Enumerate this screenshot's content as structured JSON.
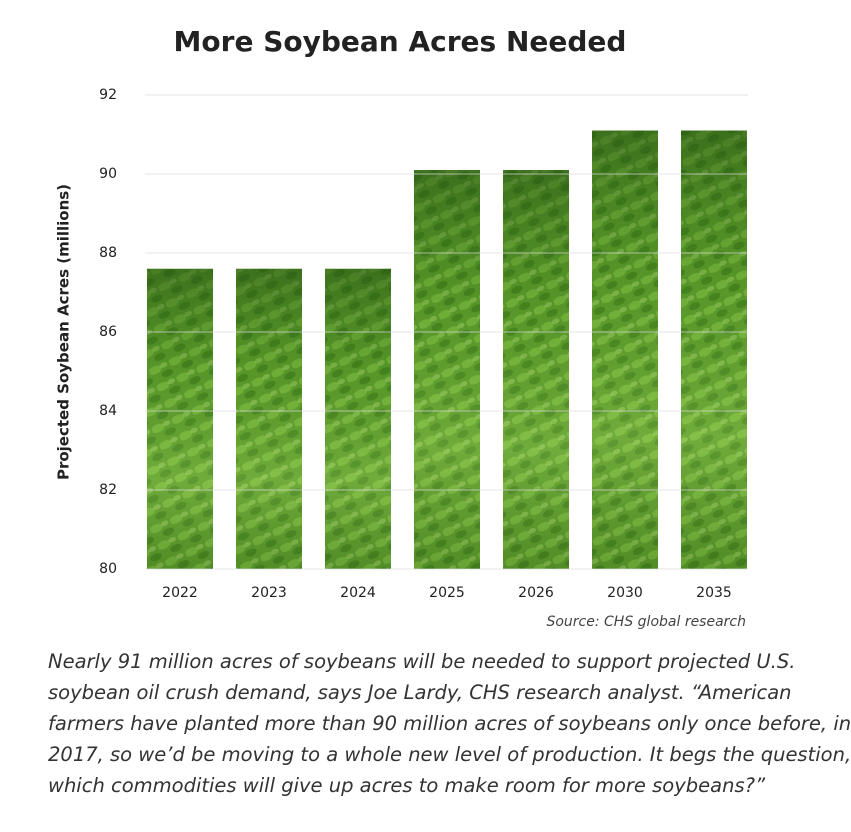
{
  "chart_data": {
    "type": "bar",
    "title": "More Soybean Acres Needed",
    "y_label": "Projected Soybean Acres (millions)",
    "categories": [
      "2022",
      "2023",
      "2024",
      "2025",
      "2026",
      "2030",
      "2035"
    ],
    "values": [
      87.6,
      87.6,
      87.6,
      90.1,
      90.1,
      91.1,
      91.1
    ],
    "color": "#5e9e2c",
    "ylim": [
      80,
      92
    ],
    "yticks": [
      80,
      82,
      84,
      86,
      88,
      90,
      92
    ],
    "grid": true,
    "source": "Source: CHS global research"
  },
  "caption": [
    "Nearly 91 million acres of soybeans will be needed to support projected U.S.",
    "soybean oil crush demand, says Joe Lardy, CHS research analyst. “American",
    "farmers have planted more than 90 million acres of soybeans only once before, in",
    "2017, so we’d be moving to a whole new level of production. It begs the question,",
    "which commodities will give up acres to make room for more soybeans?”"
  ]
}
